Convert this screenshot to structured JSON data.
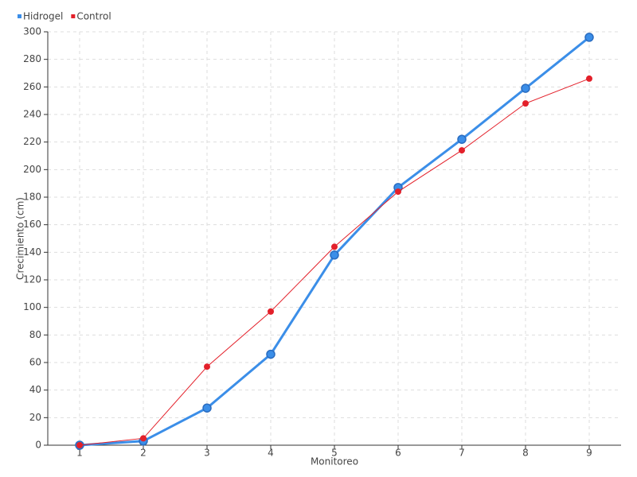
{
  "chart_data": {
    "type": "line",
    "x_label": "Monitoreo",
    "y_label": "Crecimiento (cm)",
    "x": [
      1,
      2,
      3,
      4,
      5,
      6,
      7,
      8,
      9
    ],
    "series": [
      {
        "name": "Hidrogel",
        "color": "#3b8ee8",
        "values": [
          0,
          3,
          27,
          66,
          138,
          187,
          222,
          259,
          296
        ]
      },
      {
        "name": "Control",
        "color": "#e3202a",
        "values": [
          0,
          5,
          57,
          97,
          144,
          184,
          214,
          248,
          266
        ]
      }
    ],
    "xlim": [
      0.5,
      9.5
    ],
    "xticks": [
      1,
      2,
      3,
      4,
      5,
      6,
      7,
      8,
      9
    ],
    "ylim": [
      0,
      300
    ],
    "yticks": [
      0,
      20,
      40,
      60,
      80,
      100,
      120,
      140,
      160,
      180,
      200,
      220,
      240,
      260,
      280,
      300
    ],
    "grid": true,
    "legend": "top-left"
  }
}
